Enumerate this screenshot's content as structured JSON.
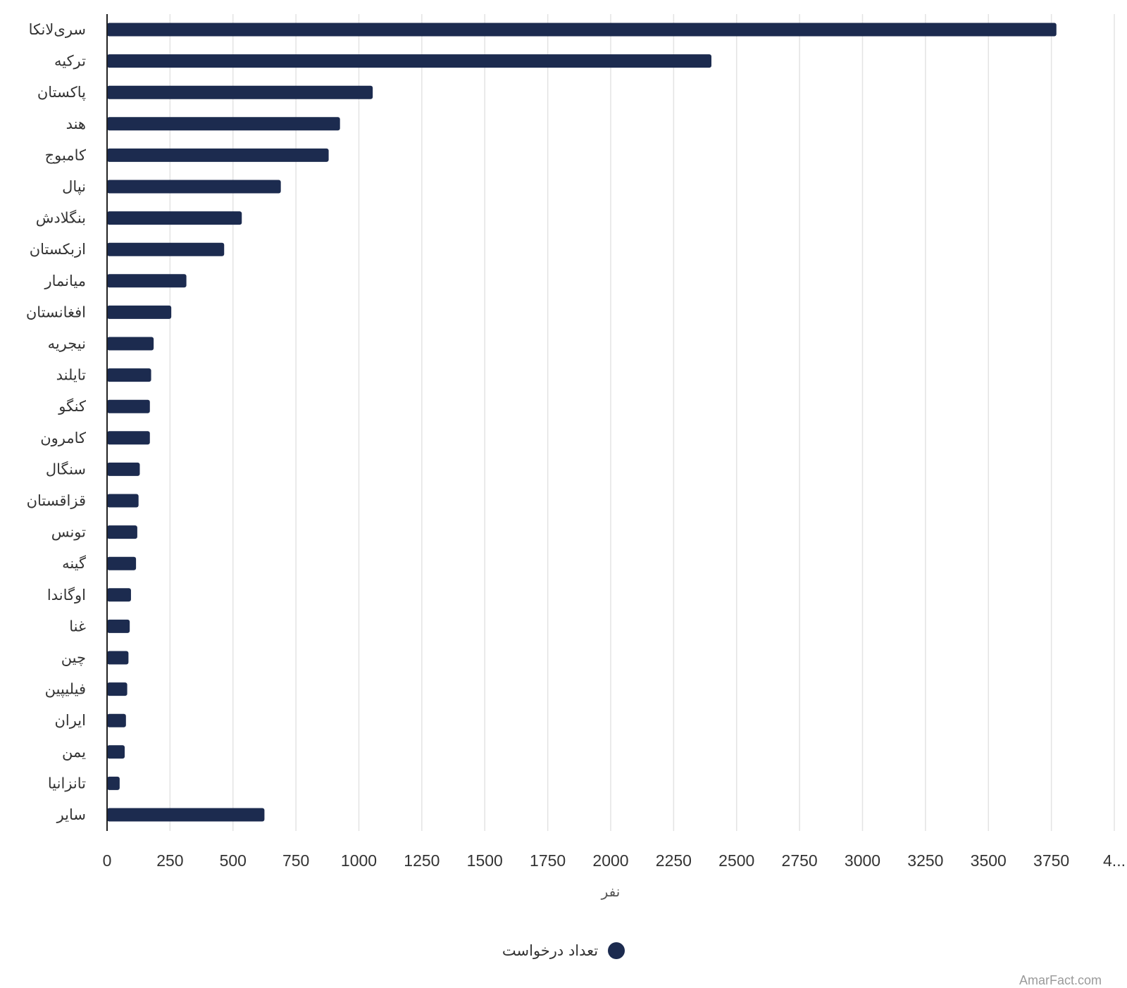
{
  "chart_data": {
    "type": "bar",
    "orientation": "horizontal",
    "categories": [
      "سری‌لانکا",
      "ترکیه",
      "پاکستان",
      "هند",
      "کامبوج",
      "نپال",
      "بنگلادش",
      "ازبکستان",
      "میانمار",
      "افغانستان",
      "نیجریه",
      "تایلند",
      "کنگو",
      "کامرون",
      "سنگال",
      "قزاقستان",
      "تونس",
      "گینه",
      "اوگاندا",
      "غنا",
      "چین",
      "فیلیپین",
      "ایران",
      "یمن",
      "تانزانیا",
      "سایر"
    ],
    "series": [
      {
        "name": "تعداد درخواست",
        "values": [
          3770,
          2400,
          1055,
          925,
          880,
          690,
          535,
          465,
          315,
          255,
          185,
          175,
          170,
          170,
          130,
          125,
          120,
          115,
          95,
          90,
          85,
          80,
          75,
          70,
          50,
          625
        ]
      }
    ],
    "xlim": [
      0,
      4000
    ],
    "xticks": [
      "0",
      "250",
      "500",
      "750",
      "1000",
      "1250",
      "1500",
      "1750",
      "2000",
      "2250",
      "2500",
      "2750",
      "3000",
      "3250",
      "3500",
      "3750",
      "4..."
    ],
    "xlabel": "نفر",
    "grid": true,
    "legend_position": "bottom-center",
    "bar_color": "#1c2b4f",
    "grid_color": "#e3e3e3"
  },
  "watermark": "AmarFact.com"
}
